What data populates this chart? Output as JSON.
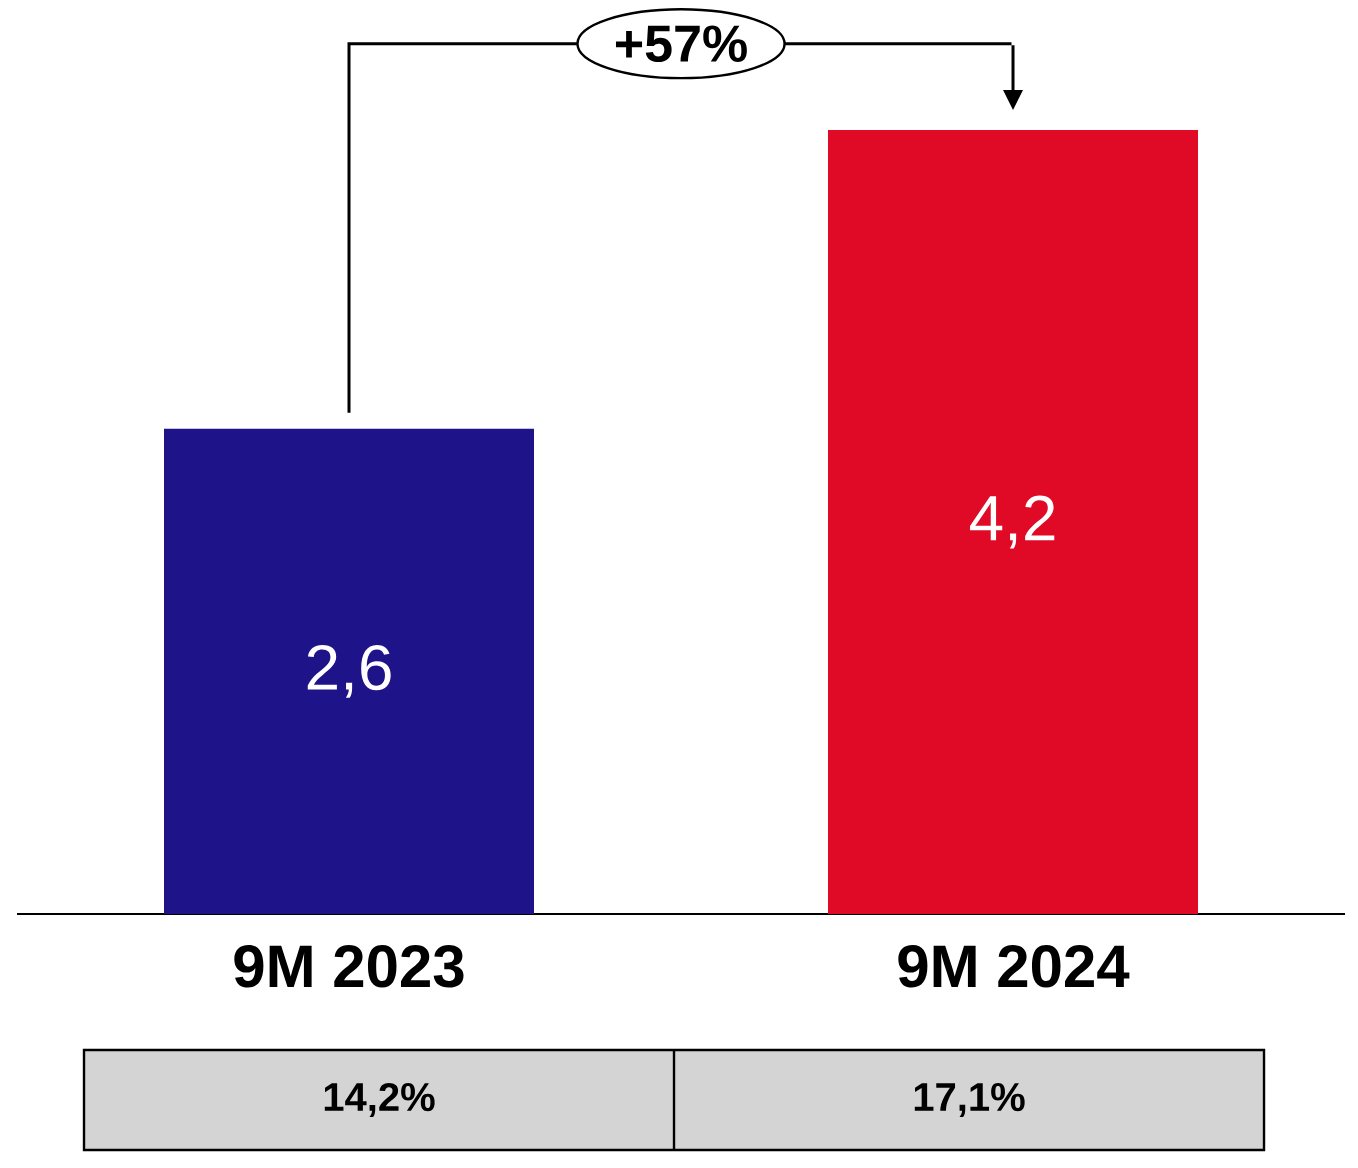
{
  "chart_data": {
    "type": "bar",
    "categories": [
      "9M 2023",
      "9M 2024"
    ],
    "values": [
      2.6,
      4.2
    ],
    "colors": [
      "#1f138a",
      "#e00a26"
    ],
    "value_labels": [
      "2,6",
      "4,2"
    ],
    "annotations": [
      "+57%",
      "14,2%",
      "17,1%"
    ]
  }
}
